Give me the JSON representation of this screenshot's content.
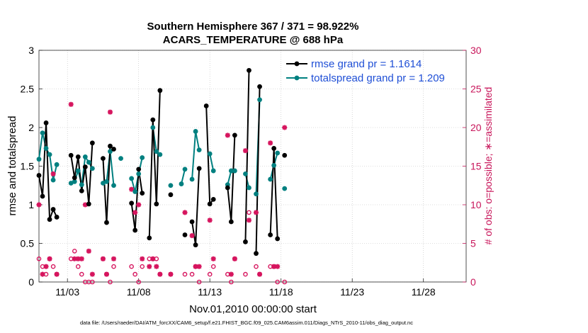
{
  "chart_data": {
    "type": "scatter",
    "title": "Southern Hemisphere 367 / 371 = 98.922%",
    "subtitle": "ACARS_TEMPERATURE @ 688 hPa",
    "ylabel": "rmse and totalspread",
    "ylabel_right": "# of obs: o=possible; ∗=assimilated",
    "xlabel": "Nov.01,2010 00:00:00 start",
    "footer": "data file: /Users/raeder/DAI/ATM_forcXX/CAM6_setup/f.e21.FHIST_BGC.f09_025.CAM6assim.011/Diags_NTrS_2010-11/obs_diag_output.nc",
    "xlim": [
      1.0,
      31.0
    ],
    "ylim": [
      0,
      3
    ],
    "ylim_right": [
      0,
      30
    ],
    "yticks": [
      "0",
      "0.5",
      "1",
      "1.5",
      "2",
      "2.5",
      "3"
    ],
    "yticks_right": [
      "0",
      "5",
      "10",
      "15",
      "20",
      "25",
      "30"
    ],
    "xticks": [
      {
        "value": 3,
        "label": "11/03"
      },
      {
        "value": 8,
        "label": "11/08"
      },
      {
        "value": 13,
        "label": "11/13"
      },
      {
        "value": 18,
        "label": "11/18"
      },
      {
        "value": 23,
        "label": "11/23"
      },
      {
        "value": 28,
        "label": "11/28"
      }
    ],
    "legend_position": "top-right",
    "grid": true,
    "series": [
      {
        "name": "rmse grand pr = 1.1614",
        "color": "#000000",
        "x": [
          1.0,
          1.25,
          1.5,
          1.75,
          2.0,
          2.25,
          2.5,
          2.75,
          3.0,
          3.25,
          3.5,
          3.75,
          4.0,
          4.25,
          4.5,
          4.75,
          5.0,
          5.25,
          5.5,
          5.75,
          6.0,
          6.25,
          6.5,
          6.75,
          7.0,
          7.25,
          7.5,
          7.75,
          8.0,
          8.25,
          8.5,
          8.75,
          9.0,
          9.25,
          9.5,
          9.75,
          10.0,
          10.25,
          10.5,
          10.75,
          11.0,
          11.25,
          11.5,
          11.75,
          12.0,
          12.25,
          12.5,
          12.75,
          13.0,
          13.25,
          13.5,
          13.75,
          14.0,
          14.25,
          14.5,
          14.75,
          15.0,
          15.25,
          15.5,
          15.75,
          16.0,
          16.25,
          16.5,
          16.75,
          17.0,
          17.25,
          17.5,
          17.75,
          18.0,
          18.25,
          18.5,
          18.75,
          19.0,
          19.25,
          19.5,
          19.75,
          20.0,
          20.25,
          20.5,
          20.75,
          21.0,
          21.25,
          21.5,
          21.75,
          22.0,
          22.25,
          22.5,
          22.75,
          23.0,
          23.25,
          23.5,
          23.75,
          24.0,
          24.25,
          24.5,
          24.75,
          25.0,
          25.25,
          25.5,
          25.75,
          26.0,
          26.25,
          26.5,
          26.75,
          27.0,
          27.25,
          27.5,
          27.75,
          28.0,
          28.25,
          28.5,
          28.75,
          29.0,
          29.25,
          29.5,
          29.75,
          30.0,
          30.25,
          30.5,
          30.75
        ],
        "values": [
          1.38,
          1.11,
          2.06,
          null,
          0.81,
          0.94,
          0.84,
          1.64,
          1.35,
          1.62,
          1.18,
          1.49,
          1.01,
          1.8,
          null,
          1.6,
          0.77,
          1.76,
          1.72,
          null,
          1.02,
          0.67,
          1.46,
          1.15,
          0.57,
          2.1,
          1.01,
          2.48,
          null,
          null,
          1.13,
          null,
          null,
          0.61,
          0.78,
          0.48,
          1.47,
          null,
          2.28,
          1.01,
          1.07,
          null,
          null,
          null,
          1.22,
          0.78,
          1.9,
          null,
          0.52,
          2.74,
          null,
          0.37,
          2.53,
          null,
          0.61,
          1.73,
          0.56,
          1.64,
          null,
          null,
          null,
          null,
          null,
          null,
          null,
          null,
          null,
          null,
          null,
          null,
          null,
          null,
          null,
          null,
          null,
          null,
          null,
          null,
          null,
          null,
          null,
          null,
          null,
          null,
          null,
          null,
          null,
          null,
          null,
          null,
          null,
          null,
          null,
          null,
          null,
          null,
          null,
          null,
          null,
          null,
          null,
          null,
          null,
          null,
          null,
          null,
          null,
          null,
          null,
          null,
          null,
          null,
          null,
          null,
          null,
          null,
          null,
          null,
          null,
          null
        ]
      },
      {
        "name": "totalspread grand pr = 1.209",
        "color": "#008080",
        "values_note": "",
        "x": [],
        "values": []
      }
    ],
    "points_rmse": [
      [
        1.0,
        1.38
      ],
      [
        1.25,
        1.11
      ],
      [
        1.5,
        2.06
      ],
      [
        1.75,
        0.81
      ],
      [
        2.0,
        0.94
      ],
      [
        2.25,
        0.84
      ],
      [
        3.25,
        1.64
      ],
      [
        3.5,
        1.35
      ],
      [
        3.75,
        1.62
      ],
      [
        4.0,
        1.18
      ],
      [
        4.25,
        1.49
      ],
      [
        4.5,
        1.01
      ],
      [
        4.75,
        1.8
      ],
      [
        5.5,
        1.6
      ],
      [
        5.75,
        0.77
      ],
      [
        6.0,
        1.76
      ],
      [
        6.25,
        1.72
      ],
      [
        7.5,
        1.02
      ],
      [
        7.75,
        0.67
      ],
      [
        8.0,
        1.46
      ],
      [
        8.25,
        1.15
      ],
      [
        8.75,
        0.57
      ],
      [
        9.0,
        2.1
      ],
      [
        9.25,
        1.01
      ],
      [
        9.5,
        2.48
      ],
      [
        10.25,
        1.13
      ],
      [
        11.25,
        0.61
      ],
      [
        11.75,
        0.78
      ],
      [
        12.0,
        0.48
      ],
      [
        12.25,
        1.47
      ],
      [
        12.75,
        2.28
      ],
      [
        13.0,
        1.01
      ],
      [
        13.25,
        1.07
      ],
      [
        14.25,
        1.22
      ],
      [
        14.5,
        0.78
      ],
      [
        14.75,
        1.9
      ],
      [
        15.5,
        0.52
      ],
      [
        15.75,
        2.74
      ],
      [
        16.25,
        0.37
      ],
      [
        16.5,
        2.53
      ],
      [
        17.25,
        0.61
      ],
      [
        17.5,
        1.73
      ],
      [
        17.75,
        0.56
      ],
      [
        18.25,
        1.64
      ]
    ],
    "points_spread": [
      [
        1.0,
        1.59
      ],
      [
        1.25,
        1.93
      ],
      [
        1.5,
        1.73
      ],
      [
        1.75,
        1.65
      ],
      [
        2.0,
        1.32
      ],
      [
        2.25,
        1.52
      ],
      [
        3.25,
        1.28
      ],
      [
        3.5,
        1.3
      ],
      [
        3.75,
        1.44
      ],
      [
        4.0,
        1.26
      ],
      [
        4.25,
        1.62
      ],
      [
        4.5,
        1.55
      ],
      [
        4.75,
        1.47
      ],
      [
        5.5,
        1.28
      ],
      [
        5.75,
        1.3
      ],
      [
        6.0,
        1.69
      ],
      [
        6.25,
        1.25
      ],
      [
        6.75,
        1.6
      ],
      [
        7.5,
        1.34
      ],
      [
        7.75,
        1.17
      ],
      [
        8.0,
        1.4
      ],
      [
        8.25,
        1.61
      ],
      [
        9.0,
        2.0
      ],
      [
        9.25,
        1.69
      ],
      [
        9.5,
        1.65
      ],
      [
        10.25,
        1.25
      ],
      [
        11.0,
        1.27
      ],
      [
        11.25,
        1.46
      ],
      [
        11.75,
        1.33
      ],
      [
        12.0,
        1.95
      ],
      [
        12.25,
        1.71
      ],
      [
        13.0,
        1.66
      ],
      [
        13.25,
        1.44
      ],
      [
        14.25,
        1.26
      ],
      [
        14.5,
        1.44
      ],
      [
        14.75,
        1.44
      ],
      [
        15.5,
        1.4
      ],
      [
        15.75,
        1.22
      ],
      [
        16.25,
        1.14
      ],
      [
        16.5,
        2.36
      ],
      [
        17.25,
        1.33
      ],
      [
        17.5,
        1.51
      ],
      [
        17.75,
        1.67
      ],
      [
        18.25,
        1.21
      ]
    ],
    "points_possible": [
      [
        1.0,
        3
      ],
      [
        1.25,
        2
      ],
      [
        1.5,
        1
      ],
      [
        1.75,
        3
      ],
      [
        2.0,
        2
      ],
      [
        2.25,
        1
      ],
      [
        3.25,
        3
      ],
      [
        3.5,
        4
      ],
      [
        3.75,
        2
      ],
      [
        4.0,
        1
      ],
      [
        4.25,
        0
      ],
      [
        4.5,
        0
      ],
      [
        4.75,
        0
      ],
      [
        5.5,
        3
      ],
      [
        5.75,
        1
      ],
      [
        6.0,
        0
      ],
      [
        6.25,
        2
      ],
      [
        7.5,
        2
      ],
      [
        7.75,
        1
      ],
      [
        8.0,
        0
      ],
      [
        8.25,
        2
      ],
      [
        8.75,
        3
      ],
      [
        9.0,
        3
      ],
      [
        9.25,
        3
      ],
      [
        9.5,
        1
      ],
      [
        10.25,
        1
      ],
      [
        11.25,
        1
      ],
      [
        11.75,
        1
      ],
      [
        12.0,
        2
      ],
      [
        12.25,
        0
      ],
      [
        13.0,
        1
      ],
      [
        13.25,
        2
      ],
      [
        14.25,
        1
      ],
      [
        14.5,
        0
      ],
      [
        14.75,
        3
      ],
      [
        15.5,
        1
      ],
      [
        15.75,
        9
      ],
      [
        16.25,
        2
      ],
      [
        16.5,
        1
      ],
      [
        17.25,
        2
      ],
      [
        17.5,
        2
      ],
      [
        17.75,
        0
      ],
      [
        18.25,
        0
      ]
    ],
    "points_assimilated": [
      [
        1.0,
        10
      ],
      [
        1.25,
        1
      ],
      [
        1.5,
        2
      ],
      [
        1.75,
        3
      ],
      [
        2.0,
        14
      ],
      [
        2.25,
        1
      ],
      [
        3.25,
        23
      ],
      [
        3.5,
        3
      ],
      [
        3.75,
        3
      ],
      [
        4.0,
        3
      ],
      [
        4.25,
        10
      ],
      [
        4.5,
        4
      ],
      [
        4.75,
        1
      ],
      [
        5.5,
        3
      ],
      [
        5.75,
        1
      ],
      [
        6.0,
        22
      ],
      [
        6.25,
        3
      ],
      [
        7.5,
        12
      ],
      [
        7.75,
        9
      ],
      [
        8.0,
        10
      ],
      [
        8.25,
        3
      ],
      [
        8.75,
        2
      ],
      [
        9.0,
        3
      ],
      [
        9.25,
        2
      ],
      [
        9.5,
        1
      ],
      [
        10.25,
        1
      ],
      [
        11.25,
        9
      ],
      [
        11.75,
        6
      ],
      [
        12.0,
        2
      ],
      [
        12.25,
        2
      ],
      [
        13.0,
        8
      ],
      [
        13.25,
        3
      ],
      [
        14.25,
        19
      ],
      [
        14.5,
        1
      ],
      [
        14.75,
        3
      ],
      [
        15.5,
        17
      ],
      [
        15.75,
        8
      ],
      [
        16.25,
        9
      ],
      [
        16.5,
        1
      ],
      [
        17.25,
        18
      ],
      [
        17.5,
        2
      ],
      [
        17.75,
        2
      ],
      [
        18.25,
        20
      ]
    ]
  }
}
